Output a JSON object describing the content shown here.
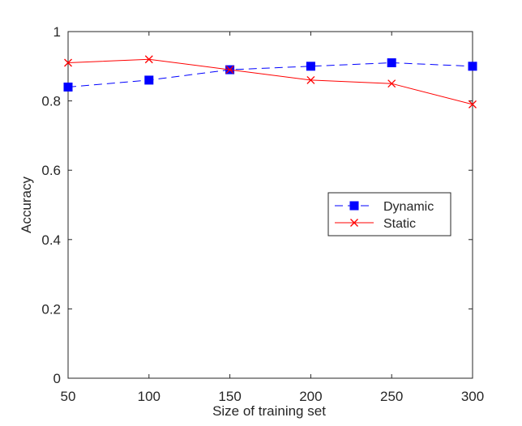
{
  "chart_data": {
    "type": "line",
    "xlabel": "Size of training set",
    "ylabel": "Accuracy",
    "xlim": [
      50,
      300
    ],
    "ylim": [
      0,
      1
    ],
    "x_ticks": [
      50,
      100,
      150,
      200,
      250,
      300
    ],
    "y_ticks": [
      0,
      0.2,
      0.4,
      0.6,
      0.8,
      1
    ],
    "x_tick_labels": [
      "50",
      "100",
      "150",
      "200",
      "250",
      "300"
    ],
    "y_tick_labels": [
      "0",
      "0.2",
      "0.4",
      "0.6",
      "0.8",
      "1"
    ],
    "grid": false,
    "legend_position": "right-middle",
    "x": [
      50,
      100,
      150,
      200,
      250,
      300
    ],
    "series": [
      {
        "name": "Dynamic",
        "values": [
          0.84,
          0.86,
          0.89,
          0.9,
          0.91,
          0.9
        ],
        "color": "#0000ff",
        "line_style": "dashed",
        "marker": "square-filled"
      },
      {
        "name": "Static",
        "values": [
          0.91,
          0.92,
          0.89,
          0.86,
          0.85,
          0.79
        ],
        "color": "#ff0000",
        "line_style": "solid",
        "marker": "x"
      }
    ]
  }
}
